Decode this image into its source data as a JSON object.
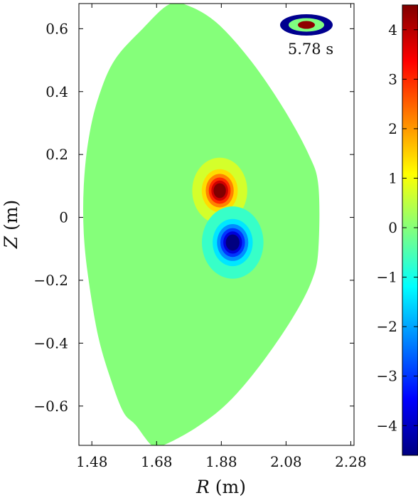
{
  "chart_data": {
    "type": "heatmap",
    "xlabel_var": "R",
    "xlabel_unit": "(m)",
    "ylabel_var": "Z",
    "ylabel_unit": "(m)",
    "xlim": [
      1.44,
      2.29
    ],
    "ylim": [
      -0.725,
      0.68
    ],
    "x_ticks": [
      1.48,
      1.68,
      1.88,
      2.08,
      2.28
    ],
    "x_tick_labels": [
      "1.48",
      "1.68",
      "1.88",
      "2.08",
      "2.28"
    ],
    "y_ticks": [
      0.6,
      0.4,
      0.2,
      0,
      -0.2,
      -0.4,
      -0.6
    ],
    "y_tick_labels": [
      "0.6",
      "0.4",
      "0.2",
      "0",
      "−0.2",
      "−0.4",
      "−0.6"
    ],
    "colorbar": {
      "colormap": "jet",
      "range": [
        -4.6,
        4.5
      ],
      "ticks": [
        4,
        3,
        2,
        1,
        0,
        -1,
        -2,
        -3,
        -4
      ],
      "tick_labels": [
        "4",
        "3",
        "2",
        "1",
        "0",
        "−1",
        "−2",
        "−3",
        "−4"
      ]
    },
    "time_label": "5.78 s",
    "background_value": 0,
    "boundary_RZ": [
      [
        1.637,
        0.6
      ],
      [
        1.72,
        0.678
      ],
      [
        1.785,
        0.67
      ],
      [
        1.87,
        0.615
      ],
      [
        1.97,
        0.5
      ],
      [
        2.07,
        0.35
      ],
      [
        2.15,
        0.2
      ],
      [
        2.18,
        0.1
      ],
      [
        2.18,
        -0.1
      ],
      [
        2.16,
        -0.2
      ],
      [
        2.1,
        -0.32
      ],
      [
        2.0,
        -0.47
      ],
      [
        1.9,
        -0.59
      ],
      [
        1.8,
        -0.67
      ],
      [
        1.7,
        -0.725
      ],
      [
        1.665,
        -0.725
      ],
      [
        1.615,
        -0.66
      ],
      [
        1.578,
        -0.62
      ],
      [
        1.54,
        -0.52
      ],
      [
        1.5,
        -0.38
      ],
      [
        1.47,
        -0.2
      ],
      [
        1.455,
        -0.05
      ],
      [
        1.455,
        0.1
      ],
      [
        1.47,
        0.25
      ],
      [
        1.5,
        0.38
      ],
      [
        1.55,
        0.5
      ]
    ],
    "lobes": [
      {
        "name": "",
        "peak": 4.5,
        "center_RZ": [
          1.875,
          0.085
        ],
        "contour_radii_RZ": [
          0.085,
          0.105
        ]
      },
      {
        "name": "",
        "peak": -4.6,
        "center_RZ": [
          1.915,
          -0.08
        ],
        "contour_radii_RZ": [
          0.095,
          0.115
        ]
      }
    ],
    "contour_levels": [
      -4.6,
      -3.8,
      -3.0,
      -2.2,
      -1.4,
      -0.7,
      0.7,
      1.4,
      2.2,
      3.0,
      3.8,
      4.5
    ]
  },
  "colors": {
    "background_field": "#80ff80",
    "inset_outer": "#00008f",
    "inset_mid": "#80ff80",
    "inset_core": "#8f0000"
  }
}
